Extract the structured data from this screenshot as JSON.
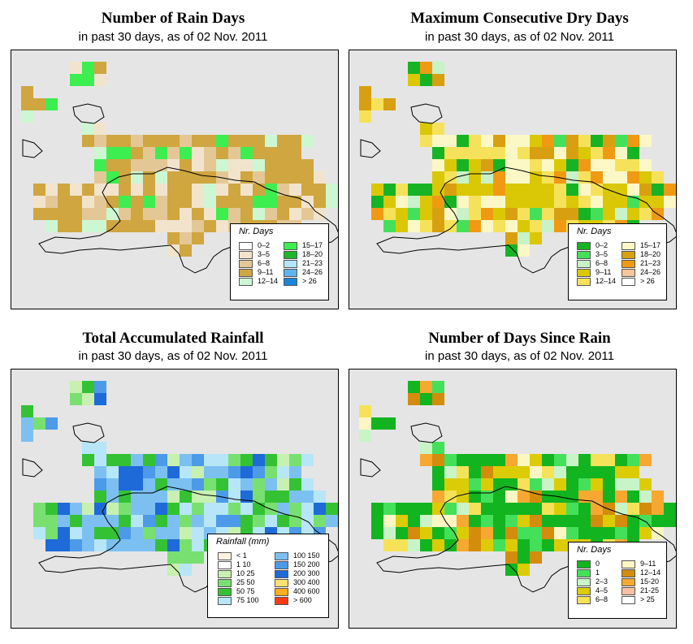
{
  "panels": [
    {
      "id": "rain-days",
      "title": "Number of Rain Days",
      "subtitle": "in past 30 days, as of  02 Nov. 2011",
      "legend": {
        "title": "Nr. Days",
        "labels": [
          "0–2",
          "3–5",
          "6–8",
          "9–11",
          "12–14",
          "15–17",
          "18–20",
          "21–23",
          "24–26",
          "> 26"
        ],
        "colors": [
          "#ffffff",
          "#f2e4cc",
          "#e3c896",
          "#cfa640",
          "#cdf7d2",
          "#3cee50",
          "#1ab82a",
          "#b3e6f7",
          "#5eb4ee",
          "#1a86d8"
        ]
      }
    },
    {
      "id": "dry-days",
      "title": "Maximum Consecutive Dry Days",
      "subtitle": "in past 30 days, as of  02 Nov. 2011",
      "legend": {
        "title": "Nr. Days",
        "labels": [
          "0–2",
          "3–5",
          "6–8",
          "9–11",
          "12–14",
          "15–17",
          "18–20",
          "21–23",
          "24–26",
          "> 26"
        ],
        "colors": [
          "#16b424",
          "#44e05a",
          "#c8f2c8",
          "#dac806",
          "#f6e25a",
          "#fbf8c6",
          "#d8a010",
          "#f09a14",
          "#f8c49a",
          "#ffffff"
        ]
      }
    },
    {
      "id": "rainfall",
      "title": "Total Accumulated Rainfall",
      "subtitle": "in past 30 days, as of  02 Nov. 2011",
      "legend": {
        "title": "Rainfall (mm)",
        "labels": [
          "< 1",
          "1   10",
          "10   25",
          "25   50",
          "50   75",
          "75  100",
          "100  150",
          "150  200",
          "200  300",
          "300  400",
          "400  600",
          "> 600"
        ],
        "colors": [
          "#fbf2e0",
          "#ffffff",
          "#c8f0b0",
          "#78e070",
          "#34c234",
          "#b6e6f8",
          "#7cc0f2",
          "#4c9ae8",
          "#1e6ad8",
          "#ffe070",
          "#ffac20",
          "#ff3a10"
        ]
      }
    },
    {
      "id": "since-rain",
      "title": "Number of Days Since Rain",
      "subtitle": "in past 30 days, as of  02 Nov. 2011",
      "legend": {
        "title": "Nr. Days",
        "labels": [
          "0",
          "1",
          "2–3",
          "4–5",
          "6–8",
          "9–11",
          "12–14",
          "15-20",
          "21-25",
          "> 25"
        ],
        "colors": [
          "#12b420",
          "#44e05a",
          "#c8f4c8",
          "#dccc06",
          "#f6e258",
          "#fbf6c2",
          "#d48c0c",
          "#f6a830",
          "#f8c0a0",
          "#ffffff"
        ]
      }
    }
  ]
}
